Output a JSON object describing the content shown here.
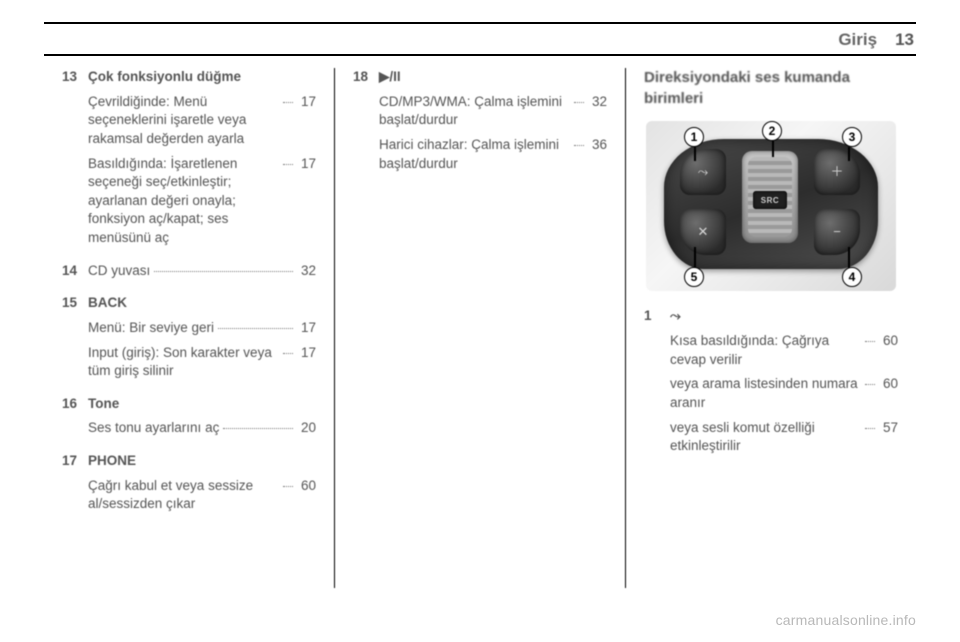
{
  "header": {
    "section": "Giriş",
    "page": "13"
  },
  "col1": {
    "i13": {
      "num": "13",
      "title": "Çok fonksiyonlu düğme",
      "p1_text": "Çevrildiğinde: Menü seçeneklerini işaretle veya rakamsal değerden ayarla",
      "p1_page": "17",
      "p2_text": "Basıldığında: İşaretlenen seçeneği seç/etkinleştir; ayarlanan değeri onayla; fonksiyon aç/kapat; ses menüsünü aç",
      "p2_page": "17"
    },
    "i14": {
      "num": "14",
      "text": "CD yuvası",
      "page": "32"
    },
    "i15": {
      "num": "15",
      "title": "BACK",
      "p1_text": "Menü: Bir seviye geri",
      "p1_page": "17",
      "p2_text": "Input (giriş): Son karakter veya tüm giriş silinir",
      "p2_page": "17"
    },
    "i16": {
      "num": "16",
      "title": "Tone",
      "p1_text": "Ses tonu ayarlarını aç",
      "p1_page": "20"
    },
    "i17": {
      "num": "17",
      "title": "PHONE",
      "p1_text": "Çağrı kabul et veya sessize al/sessizden çıkar",
      "p1_page": "60"
    }
  },
  "col2": {
    "i18": {
      "num": "18",
      "title": "▶/II",
      "p1_text": "CD/MP3/WMA: Çalma işlemini başlat/durdur",
      "p1_page": "32",
      "p2_text": "Harici cihazlar: Çalma işlemini başlat/durdur",
      "p2_page": "36"
    }
  },
  "col3": {
    "title": "Direksiyondaki ses kumanda birimleri",
    "diagram": {
      "src_label": "SRC",
      "btn_tl_glyph": "⤳",
      "btn_tr_glyph": "＋",
      "btn_bl_glyph": "✕",
      "btn_br_glyph": "−",
      "callouts": {
        "c1": "1",
        "c2": "2",
        "c3": "3",
        "c4": "4",
        "c5": "5"
      }
    },
    "i1": {
      "num": "1",
      "glyph": "⤳",
      "p1_text": "Kısa basıldığında: Çağrıya cevap verilir",
      "p1_page": "60",
      "p2_text": "veya arama listesinden numara aranır",
      "p2_page": "60",
      "p3_text": "veya sesli komut özelliği etkinleştirilir",
      "p3_page": "57"
    }
  },
  "footer": "carmanualsonline.info"
}
